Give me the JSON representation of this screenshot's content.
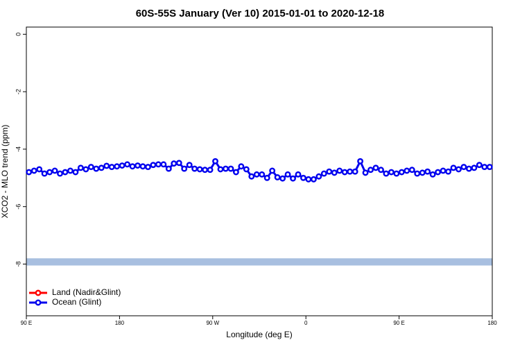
{
  "chart_data": {
    "type": "line",
    "title": "60S-55S January (Ver 10)   2015-01-01 to 2020-12-18",
    "x_label": "Longitude (deg E)",
    "y_label": "XCO2 - MLO trend (ppm)",
    "xlim": [
      90,
      540
    ],
    "ylim": [
      -9.8,
      0.25
    ],
    "xticks": [
      {
        "value": 90,
        "label": "90 E"
      },
      {
        "value": 180,
        "label": "180"
      },
      {
        "value": 270,
        "label": "90 W"
      },
      {
        "value": 360,
        "label": "0"
      },
      {
        "value": 450,
        "label": "90 E"
      },
      {
        "value": 540,
        "label": "180"
      }
    ],
    "yticks": [
      0,
      -2,
      -4,
      -6,
      -8
    ],
    "reference_band": {
      "range": [
        -8.05,
        -7.8
      ],
      "color": "#a8bfe0"
    },
    "legend": "bottom-left",
    "x": [
      92.5,
      97.5,
      102.5,
      107.5,
      112.5,
      117.5,
      122.5,
      127.5,
      132.5,
      137.5,
      142.5,
      147.5,
      152.5,
      157.5,
      162.5,
      167.5,
      172.5,
      177.5,
      182.5,
      187.5,
      192.5,
      197.5,
      202.5,
      207.5,
      212.5,
      217.5,
      222.5,
      227.5,
      232.5,
      237.5,
      242.5,
      247.5,
      252.5,
      257.5,
      262.5,
      267.5,
      272.5,
      277.5,
      282.5,
      287.5,
      292.5,
      297.5,
      302.5,
      307.5,
      312.5,
      317.5,
      322.5,
      327.5,
      332.5,
      337.5,
      342.5,
      347.5,
      352.5,
      357.5,
      362.5,
      367.5,
      372.5,
      377.5,
      382.5,
      387.5,
      392.5,
      397.5,
      402.5,
      407.5,
      412.5,
      417.5,
      422.5,
      427.5,
      432.5,
      437.5,
      442.5,
      447.5,
      452.5,
      457.5,
      462.5,
      467.5,
      472.5,
      477.5,
      482.5,
      487.5,
      492.5,
      497.5,
      502.5,
      507.5,
      512.5,
      517.5,
      522.5,
      527.5,
      532.5,
      537.5
    ],
    "series": [
      {
        "name": "Land (Nadir&Glint)",
        "color": "#ff0000",
        "values": [
          null,
          null,
          null,
          null,
          null,
          null,
          null,
          null,
          null,
          null,
          null,
          null,
          null,
          null,
          null,
          null,
          null,
          null,
          null,
          null,
          null,
          null,
          null,
          null,
          null,
          null,
          null,
          null,
          null,
          null,
          null,
          null,
          null,
          null,
          null,
          null,
          null,
          null,
          null,
          null,
          null,
          null,
          null,
          null,
          null,
          null,
          null,
          null,
          null,
          null,
          null,
          null,
          null,
          null,
          null,
          null,
          null,
          null,
          null,
          null,
          null,
          null,
          null,
          null,
          null,
          null,
          null,
          null,
          null,
          null,
          null,
          null,
          null,
          null,
          null,
          null,
          null,
          null,
          null,
          null,
          null,
          null,
          null,
          null,
          null,
          null,
          null,
          null,
          null,
          null
        ]
      },
      {
        "name": "Ocean (Glint)",
        "color": "#0000ee",
        "values": [
          -4.8,
          -4.75,
          -4.7,
          -4.85,
          -4.8,
          -4.75,
          -4.85,
          -4.8,
          -4.75,
          -4.8,
          -4.65,
          -4.7,
          -4.62,
          -4.68,
          -4.65,
          -4.58,
          -4.62,
          -4.6,
          -4.57,
          -4.53,
          -4.6,
          -4.57,
          -4.6,
          -4.62,
          -4.55,
          -4.53,
          -4.53,
          -4.68,
          -4.5,
          -4.48,
          -4.68,
          -4.55,
          -4.68,
          -4.7,
          -4.72,
          -4.72,
          -4.42,
          -4.7,
          -4.68,
          -4.68,
          -4.8,
          -4.6,
          -4.7,
          -4.95,
          -4.88,
          -4.88,
          -5.0,
          -4.75,
          -4.98,
          -5.02,
          -4.88,
          -5.02,
          -4.88,
          -5.0,
          -5.05,
          -5.05,
          -4.95,
          -4.85,
          -4.78,
          -4.82,
          -4.75,
          -4.8,
          -4.78,
          -4.78,
          -4.42,
          -4.82,
          -4.72,
          -4.65,
          -4.72,
          -4.85,
          -4.8,
          -4.85,
          -4.8,
          -4.75,
          -4.72,
          -4.85,
          -4.82,
          -4.78,
          -4.88,
          -4.8,
          -4.75,
          -4.78,
          -4.65,
          -4.7,
          -4.62,
          -4.68,
          -4.65,
          -4.55,
          -4.62,
          -4.62
        ]
      }
    ]
  }
}
